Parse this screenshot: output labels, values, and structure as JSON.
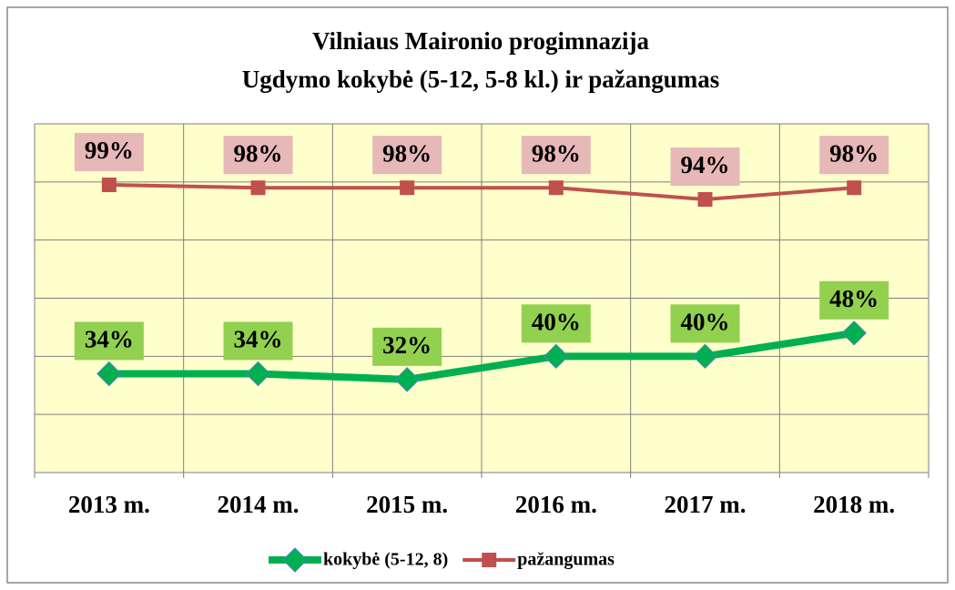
{
  "chart_data": {
    "type": "line",
    "title": "Vilniaus Maironio progimnazija",
    "subtitle": "Ugdymo kokybė (5-12, 5-8 kl.) ir pažangumas",
    "categories": [
      "2013 m.",
      "2014 m.",
      "2015 m.",
      "2016 m.",
      "2017 m.",
      "2018 m."
    ],
    "series": [
      {
        "name": "kokybė (5-12, 8)",
        "color": "#00b050",
        "label_color": "#92d050",
        "marker": "diamond",
        "values": [
          34,
          34,
          32,
          40,
          40,
          48
        ],
        "value_labels": [
          "34%",
          "34%",
          "32%",
          "40%",
          "40%",
          "48%"
        ]
      },
      {
        "name": "pažangumas",
        "color": "#c0504d",
        "label_color": "#e6b8b7",
        "marker": "square",
        "values": [
          99,
          98,
          98,
          98,
          94,
          98
        ],
        "value_labels": [
          "99%",
          "98%",
          "98%",
          "98%",
          "94%",
          "98%"
        ]
      }
    ],
    "ylim": [
      0,
      120
    ],
    "yticks": [
      0,
      20,
      40,
      60,
      80,
      100,
      120
    ],
    "grid": true,
    "legend": "bottom"
  }
}
